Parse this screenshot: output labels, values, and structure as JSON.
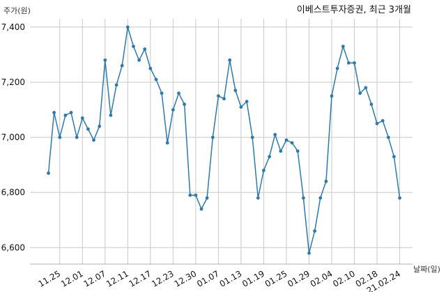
{
  "chart_data": {
    "type": "line",
    "title": "이베스트투자증권, 최근 3개월",
    "ylabel": "주가(원)",
    "xlabel": "날짜(일)",
    "x_tick_labels": [
      "11.25",
      "12.01",
      "12.07",
      "12.11",
      "12.17",
      "12.23",
      "12.30",
      "01.07",
      "01.13",
      "01.19",
      "01.25",
      "01.29",
      "02.04",
      "02.10",
      "02.18",
      "21.02.24"
    ],
    "x_tick_indices": [
      2,
      6,
      10,
      14,
      18,
      22,
      26,
      30,
      34,
      38,
      42,
      46,
      50,
      54,
      58,
      62
    ],
    "y_ticks": [
      6600,
      6800,
      7000,
      7200,
      7400
    ],
    "y_tick_labels": [
      "6,600",
      "6,800",
      "7,000",
      "7,200",
      "7,400"
    ],
    "ylim": [
      6540,
      7430
    ],
    "grid": true,
    "series_color": "#2a7ab0",
    "series": [
      {
        "values": [
          6870,
          7090,
          7000,
          7080,
          7090,
          7000,
          7070,
          7030,
          6990,
          7040,
          7280,
          7080,
          7190,
          7260,
          7400,
          7330,
          7280,
          7320,
          7250,
          7210,
          7160,
          6980,
          7100,
          7160,
          7120,
          6790,
          6790,
          6740,
          6780,
          7000,
          7150,
          7140,
          7280,
          7170,
          7110,
          7130,
          7000,
          6780,
          6880,
          6930,
          7010,
          6950,
          6990,
          6980,
          6950,
          6780,
          6580,
          6660,
          6780,
          6840,
          7150,
          7250,
          7330,
          7270,
          7270,
          7160,
          7180,
          7120,
          7050,
          7060,
          7000,
          6930,
          6780
        ]
      }
    ]
  }
}
